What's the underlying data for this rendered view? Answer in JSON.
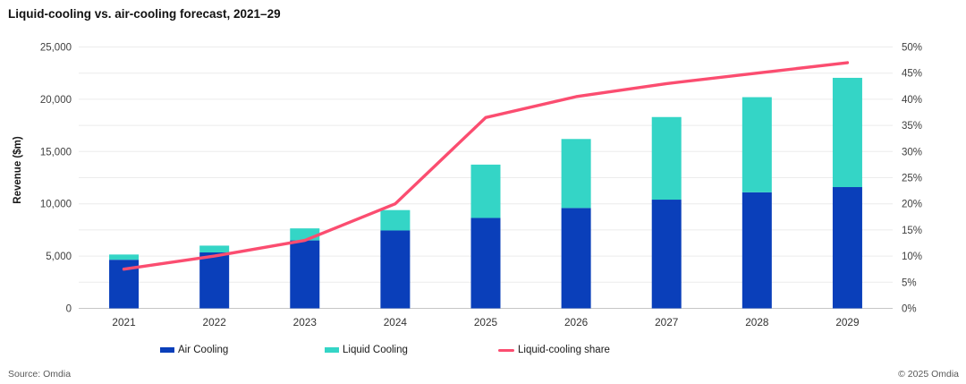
{
  "page": {
    "source": "Source: Omdia",
    "copyright": "© 2025 Omdia"
  },
  "colors": {
    "air_cooling": "#0a3fba",
    "liquid_cooling": "#34d5c6",
    "share_line": "#fb4d70",
    "grid": "#ececec",
    "axis_line": "#c6c6c6",
    "tick_text": "#404040"
  },
  "chart_data": {
    "type": "bar",
    "subtype": "stacked-bars-with-line-overlay",
    "title": "Liquid-cooling vs. air-cooling forecast, 2021–29",
    "categories": [
      "2021",
      "2022",
      "2023",
      "2024",
      "2025",
      "2026",
      "2027",
      "2028",
      "2029"
    ],
    "series": [
      {
        "name": "Air Cooling",
        "type": "bar",
        "stack": true,
        "axis": "left",
        "color": "#0a3fba",
        "values": [
          4650,
          5350,
          6500,
          7450,
          8650,
          9600,
          10400,
          11100,
          11600
        ]
      },
      {
        "name": "Liquid Cooling",
        "type": "bar",
        "stack": true,
        "axis": "left",
        "color": "#34d5c6",
        "values": [
          500,
          650,
          1150,
          1950,
          5100,
          6600,
          7900,
          9100,
          10450
        ]
      },
      {
        "name": "Liquid-cooling share",
        "type": "line",
        "axis": "right",
        "color": "#fb4d70",
        "values": [
          7.5,
          10,
          13,
          20,
          36.5,
          40.5,
          43,
          45,
          47
        ],
        "unit": "%"
      }
    ],
    "ylabel_left": "Revenue ($m)",
    "ylim_left": [
      0,
      25000
    ],
    "yticks_left": [
      0,
      5000,
      10000,
      15000,
      20000,
      25000
    ],
    "ytick_labels_left": [
      "0",
      "5,000",
      "10,000",
      "15,000",
      "20,000",
      "25,000"
    ],
    "ylim_right": [
      0,
      50
    ],
    "ytick_labels_right": [
      "0%",
      "5%",
      "10%",
      "15%",
      "20%",
      "25%",
      "30%",
      "35%",
      "40%",
      "45%",
      "50%"
    ],
    "grid": true,
    "legend_position": "bottom"
  }
}
